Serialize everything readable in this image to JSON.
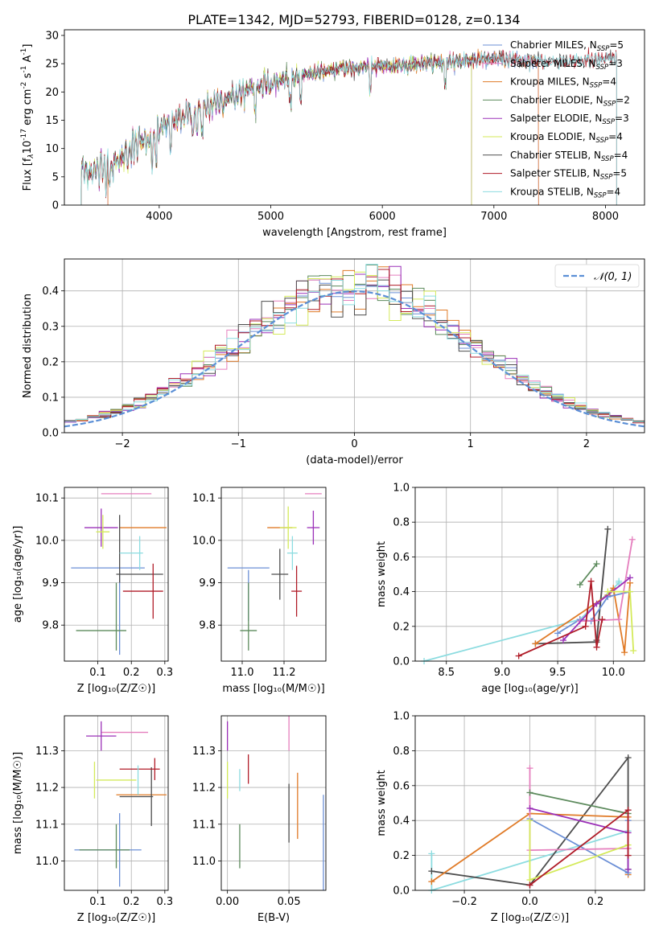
{
  "title": "PLATE=1342, MJD=52793, FIBERID=0128, z=0.134",
  "colors": {
    "Chabrier MILES": "#6b8fd6",
    "Salpeter MILES": "#e57fbe",
    "Kroupa MILES": "#e07b28",
    "Chabrier ELODIE": "#5c8a5c",
    "Salpeter ELODIE": "#9b30b8",
    "Kroupa ELODIE": "#d4ea5a",
    "Chabrier STELIB": "#4d4d4d",
    "Salpeter STELIB": "#b01c28",
    "Kroupa STELIB": "#8cdce0",
    "normal": "#5b8fd6"
  },
  "chart_data": [
    {
      "type": "line",
      "xlabel": "wavelength [Angstrom, rest frame]",
      "ylabel_main": "Flux [f",
      "ylabel_sub": "λ",
      "ylabel_mid": "10",
      "ylabel_sup": "-17",
      "ylabel_end": " erg cm",
      "ylabel_sup2": "-2",
      "ylabel_s": " s",
      "ylabel_sup3": "-1",
      "ylabel_A": " A",
      "ylabel_sup4": "-1",
      "ylabel_close": "]",
      "xlim": [
        3150,
        8350
      ],
      "ylim": [
        0,
        31
      ],
      "xticks": [
        "4000",
        "5000",
        "6000",
        "7000",
        "8000"
      ],
      "xtick_values": [
        4000,
        5000,
        6000,
        7000,
        8000
      ],
      "yticks": [
        "0",
        "5",
        "10",
        "15",
        "20",
        "25",
        "30"
      ],
      "ytick_values": [
        0,
        5,
        10,
        15,
        20,
        25,
        30
      ],
      "continuum": [
        [
          3300,
          6.0
        ],
        [
          3550,
          6.2
        ],
        [
          3700,
          9.0
        ],
        [
          3850,
          11.5
        ],
        [
          3950,
          12.5
        ],
        [
          4100,
          14.5
        ],
        [
          4300,
          16.5
        ],
        [
          4500,
          18.0
        ],
        [
          4700,
          19.5
        ],
        [
          4900,
          21.0
        ],
        [
          5100,
          22.2
        ],
        [
          5300,
          23.0
        ],
        [
          5500,
          23.8
        ],
        [
          5700,
          24.2
        ],
        [
          5900,
          24.5
        ],
        [
          6100,
          24.6
        ],
        [
          6300,
          25.0
        ],
        [
          6500,
          25.2
        ],
        [
          6700,
          25.5
        ],
        [
          6900,
          25.8
        ],
        [
          7100,
          25.8
        ],
        [
          7300,
          25.5
        ],
        [
          7500,
          25.5
        ],
        [
          7700,
          25.5
        ],
        [
          7900,
          25.6
        ],
        [
          8100,
          25.8
        ]
      ],
      "legend": [
        {
          "label": "Chabrier MILES, N",
          "sub": "SSP",
          "val": "=5",
          "color": "#6b8fd6"
        },
        {
          "label": "Salpeter MILES, N",
          "sub": "SSP",
          "val": "=3",
          "color": "#e57fbe"
        },
        {
          "label": "Kroupa MILES, N",
          "sub": "SSP",
          "val": "=4",
          "color": "#e07b28"
        },
        {
          "label": "Chabrier ELODIE, N",
          "sub": "SSP",
          "val": "=2",
          "color": "#5c8a5c"
        },
        {
          "label": "Salpeter ELODIE, N",
          "sub": "SSP",
          "val": "=3",
          "color": "#9b30b8"
        },
        {
          "label": "Kroupa ELODIE, N",
          "sub": "SSP",
          "val": "=4",
          "color": "#d4ea5a"
        },
        {
          "label": "Chabrier STELIB, N",
          "sub": "SSP",
          "val": "=4",
          "color": "#4d4d4d"
        },
        {
          "label": "Salpeter STELIB, N",
          "sub": "SSP",
          "val": "=5",
          "color": "#b01c28"
        },
        {
          "label": "Kroupa STELIB, N",
          "sub": "SSP",
          "val": "=4",
          "color": "#8cdce0"
        }
      ]
    },
    {
      "type": "area",
      "xlabel": "(data-model)/error",
      "ylabel": "Normed distribution",
      "xlim": [
        -2.5,
        2.5
      ],
      "ylim": [
        0,
        0.49
      ],
      "xticks": [
        "−2",
        "−1",
        "0",
        "1",
        "2"
      ],
      "xtick_values": [
        -2,
        -1,
        0,
        1,
        2
      ],
      "yticks": [
        "0.0",
        "0.1",
        "0.2",
        "0.3",
        "0.4"
      ],
      "ytick_values": [
        0,
        0.1,
        0.2,
        0.3,
        0.4
      ],
      "legend": "𝒩(0, 1)",
      "bin_width": 0.1
    },
    {
      "type": "scatter",
      "xlabel": "Z [log₁₀(Z/Z☉)]",
      "ylabel": "age  [log₁₀(age/yr)]",
      "xlim": [
        0.0,
        0.31
      ],
      "ylim": [
        9.715,
        10.125
      ],
      "xticks": [
        "0.1",
        "0.2",
        "0.3"
      ],
      "xtick_values": [
        0.1,
        0.2,
        0.3
      ],
      "yticks": [
        "9.8",
        "9.9",
        "10.0",
        "10.1"
      ],
      "ytick_values": [
        9.8,
        9.9,
        10.0,
        10.1
      ],
      "points": [
        {
          "s": "Chabrier MILES",
          "x": 0.13,
          "xe": 0.11,
          "y": 9.935,
          "ye": 0.0
        },
        {
          "s": "Chabrier MILES",
          "x": 0.165,
          "xe": 0.0,
          "y": 9.83,
          "ye": 0.1
        },
        {
          "s": "Salpeter MILES",
          "x": 0.185,
          "xe": 0.075,
          "y": 10.11,
          "ye": 0.0
        },
        {
          "s": "Kroupa MILES",
          "x": 0.235,
          "xe": 0.07,
          "y": 10.03,
          "ye": 0.0
        },
        {
          "s": "Chabrier ELODIE",
          "x": 0.11,
          "xe": 0.075,
          "y": 9.787,
          "ye": 0.0
        },
        {
          "s": "Chabrier ELODIE",
          "x": 0.155,
          "xe": 0.0,
          "y": 9.82,
          "ye": 0.08
        },
        {
          "s": "Salpeter ELODIE",
          "x": 0.11,
          "xe": 0.05,
          "y": 10.03,
          "ye": 0.045
        },
        {
          "s": "Kroupa ELODIE",
          "x": 0.115,
          "xe": 0.02,
          "y": 10.02,
          "ye": 0.04
        },
        {
          "s": "Chabrier STELIB",
          "x": 0.165,
          "xe": 0.0,
          "y": 9.98,
          "ye": 0.08
        },
        {
          "s": "Chabrier STELIB",
          "x": 0.225,
          "xe": 0.07,
          "y": 9.92,
          "ye": 0.0
        },
        {
          "s": "Salpeter STELIB",
          "x": 0.235,
          "xe": 0.06,
          "y": 9.88,
          "ye": 0.0
        },
        {
          "s": "Salpeter STELIB",
          "x": 0.265,
          "xe": 0.0,
          "y": 9.88,
          "ye": 0.065
        },
        {
          "s": "Kroupa STELIB",
          "x": 0.2,
          "xe": 0.035,
          "y": 9.97,
          "ye": 0.0
        },
        {
          "s": "Kroupa STELIB",
          "x": 0.225,
          "xe": 0.0,
          "y": 9.97,
          "ye": 0.04
        }
      ]
    },
    {
      "type": "scatter",
      "xlabel": "mass [log₁₀(M/M☉)]",
      "ylabel": "",
      "xlim": [
        10.9,
        11.4
      ],
      "ylim": [
        9.715,
        10.125
      ],
      "xticks": [
        "11.0",
        "11.2"
      ],
      "xtick_values": [
        11.0,
        11.2
      ],
      "yticks": [
        "9.8",
        "9.9",
        "10.0",
        "10.1"
      ],
      "ytick_values": [
        9.8,
        9.9,
        10.0,
        10.1
      ],
      "points": [
        {
          "s": "Chabrier MILES",
          "x": 11.03,
          "xe": 0.1,
          "y": 9.935,
          "ye": 0.0
        },
        {
          "s": "Chabrier MILES",
          "x": 11.03,
          "xe": 0.0,
          "y": 9.87,
          "ye": 0.06
        },
        {
          "s": "Salpeter MILES",
          "x": 11.34,
          "xe": 0.04,
          "y": 10.11,
          "ye": 0.0
        },
        {
          "s": "Kroupa MILES",
          "x": 11.18,
          "xe": 0.06,
          "y": 10.03,
          "ye": 0.0
        },
        {
          "s": "Chabrier ELODIE",
          "x": 11.03,
          "xe": 0.04,
          "y": 9.787,
          "ye": 0.0
        },
        {
          "s": "Chabrier ELODIE",
          "x": 11.03,
          "xe": 0.0,
          "y": 9.82,
          "ye": 0.08
        },
        {
          "s": "Salpeter ELODIE",
          "x": 11.34,
          "xe": 0.03,
          "y": 10.03,
          "ye": 0.04
        },
        {
          "s": "Kroupa ELODIE",
          "x": 11.22,
          "xe": 0.04,
          "y": 10.03,
          "ye": 0.05
        },
        {
          "s": "Chabrier STELIB",
          "x": 11.18,
          "xe": 0.04,
          "y": 9.92,
          "ye": 0.06
        },
        {
          "s": "Salpeter STELIB",
          "x": 11.26,
          "xe": 0.025,
          "y": 9.88,
          "ye": 0.06
        },
        {
          "s": "Kroupa STELIB",
          "x": 11.24,
          "xe": 0.025,
          "y": 9.97,
          "ye": 0.04
        }
      ]
    },
    {
      "type": "line",
      "xlabel": "age  [log₁₀(age/yr)]",
      "ylabel": "mass weight",
      "xlim": [
        8.22,
        10.28
      ],
      "ylim": [
        0.0,
        1.0
      ],
      "xticks": [
        "8.5",
        "9.0",
        "9.5",
        "10.0"
      ],
      "xtick_values": [
        8.5,
        9.0,
        9.5,
        10.0
      ],
      "yticks": [
        "0.0",
        "0.2",
        "0.4",
        "0.6",
        "0.8",
        "1.0"
      ],
      "ytick_values": [
        0,
        0.2,
        0.4,
        0.6,
        0.8,
        1.0
      ],
      "series": [
        {
          "s": "Kroupa STELIB",
          "x": [
            8.3,
            9.7,
            10.05,
            10.05
          ],
          "y": [
            0.0,
            0.24,
            0.45,
            0.46
          ]
        },
        {
          "s": "Chabrier STELIB",
          "x": [
            9.3,
            9.85,
            9.95,
            9.85
          ],
          "y": [
            0.1,
            0.11,
            0.76,
            0.12
          ]
        },
        {
          "s": "Kroupa MILES",
          "x": [
            9.3,
            9.95,
            10.0,
            10.1,
            10.15
          ],
          "y": [
            0.1,
            0.38,
            0.42,
            0.05,
            0.45
          ]
        },
        {
          "s": "Chabrier MILES",
          "x": [
            9.5,
            9.7,
            9.8,
            9.95,
            10.15
          ],
          "y": [
            0.16,
            0.24,
            0.23,
            0.37,
            0.4
          ]
        },
        {
          "s": "Salpeter MILES",
          "x": [
            9.7,
            10.05,
            10.17
          ],
          "y": [
            0.23,
            0.24,
            0.7
          ]
        },
        {
          "s": "Chabrier ELODIE",
          "x": [
            9.7,
            9.85
          ],
          "y": [
            0.44,
            0.56
          ]
        },
        {
          "s": "Salpeter ELODIE",
          "x": [
            9.55,
            9.85,
            10.15
          ],
          "y": [
            0.12,
            0.33,
            0.48
          ]
        },
        {
          "s": "Kroupa ELODIE",
          "x": [
            9.95,
            10.15,
            10.18
          ],
          "y": [
            0.4,
            0.4,
            0.06
          ]
        },
        {
          "s": "Salpeter STELIB",
          "x": [
            9.15,
            9.75,
            9.8,
            9.85,
            9.9
          ],
          "y": [
            0.03,
            0.2,
            0.46,
            0.08,
            0.24
          ]
        }
      ]
    },
    {
      "type": "scatter",
      "xlabel": "Z [log₁₀(Z/Z☉)]",
      "ylabel": "mass [log₁₀(M/M☉)]",
      "xlim": [
        0.0,
        0.31
      ],
      "ylim": [
        10.92,
        11.395
      ],
      "xticks": [
        "0.1",
        "0.2",
        "0.3"
      ],
      "xtick_values": [
        0.1,
        0.2,
        0.3
      ],
      "yticks": [
        "11.0",
        "11.1",
        "11.2",
        "11.3"
      ],
      "ytick_values": [
        11.0,
        11.1,
        11.2,
        11.3
      ],
      "points": [
        {
          "s": "Chabrier MILES",
          "x": 0.13,
          "xe": 0.1,
          "y": 11.03,
          "ye": 0.0
        },
        {
          "s": "Chabrier MILES",
          "x": 0.165,
          "xe": 0.0,
          "y": 11.03,
          "ye": 0.1
        },
        {
          "s": "Salpeter MILES",
          "x": 0.18,
          "xe": 0.07,
          "y": 11.35,
          "ye": 0.0
        },
        {
          "s": "Salpeter ELODIE",
          "x": 0.11,
          "xe": 0.045,
          "y": 11.34,
          "ye": 0.04
        },
        {
          "s": "Kroupa MILES",
          "x": 0.23,
          "xe": 0.075,
          "y": 11.18,
          "ye": 0.0
        },
        {
          "s": "Chabrier ELODIE",
          "x": 0.12,
          "xe": 0.075,
          "y": 11.03,
          "ye": 0.0
        },
        {
          "s": "Chabrier ELODIE",
          "x": 0.155,
          "xe": 0.0,
          "y": 11.04,
          "ye": 0.06
        },
        {
          "s": "Kroupa ELODIE",
          "x": 0.155,
          "xe": 0.06,
          "y": 11.22,
          "ye": 0.0
        },
        {
          "s": "Kroupa ELODIE",
          "x": 0.09,
          "xe": 0.0,
          "y": 11.22,
          "ye": 0.05
        },
        {
          "s": "Chabrier STELIB",
          "x": 0.215,
          "xe": 0.05,
          "y": 11.175,
          "ye": 0.0
        },
        {
          "s": "Chabrier STELIB",
          "x": 0.26,
          "xe": 0.0,
          "y": 11.175,
          "ye": 0.08
        },
        {
          "s": "Salpeter STELIB",
          "x": 0.225,
          "xe": 0.06,
          "y": 11.25,
          "ye": 0.0
        },
        {
          "s": "Salpeter STELIB",
          "x": 0.27,
          "xe": 0.0,
          "y": 11.25,
          "ye": 0.03
        },
        {
          "s": "Kroupa STELIB",
          "x": 0.22,
          "xe": 0.0,
          "y": 11.22,
          "ye": 0.04
        }
      ]
    },
    {
      "type": "scatter",
      "xlabel": "E(B-V)",
      "ylabel": "",
      "xlim": [
        -0.005,
        0.08
      ],
      "ylim": [
        10.92,
        11.395
      ],
      "xticks": [
        "0.00",
        "0.05"
      ],
      "xtick_values": [
        0.0,
        0.05
      ],
      "yticks": [
        "11.0",
        "11.1",
        "11.2",
        "11.3"
      ],
      "ytick_values": [
        11.0,
        11.1,
        11.2,
        11.3
      ],
      "points": [
        {
          "s": "Salpeter ELODIE",
          "x": 0.0,
          "xe": 0.0,
          "y": 11.34,
          "ye": 0.04
        },
        {
          "s": "Kroupa ELODIE",
          "x": 0.0,
          "xe": 0.0,
          "y": 11.22,
          "ye": 0.05
        },
        {
          "s": "Chabrier ELODIE",
          "x": 0.01,
          "xe": 0.0,
          "y": 11.04,
          "ye": 0.06
        },
        {
          "s": "Kroupa STELIB",
          "x": 0.01,
          "xe": 0.0,
          "y": 11.22,
          "ye": 0.03
        },
        {
          "s": "Salpeter STELIB",
          "x": 0.017,
          "xe": 0.0,
          "y": 11.25,
          "ye": 0.04
        },
        {
          "s": "Salpeter MILES",
          "x": 0.05,
          "xe": 0.0,
          "y": 11.35,
          "ye": 0.05
        },
        {
          "s": "Chabrier STELIB",
          "x": 0.05,
          "xe": 0.0,
          "y": 11.13,
          "ye": 0.08
        },
        {
          "s": "Kroupa MILES",
          "x": 0.057,
          "xe": 0.0,
          "y": 11.15,
          "ye": 0.09
        },
        {
          "s": "Chabrier MILES",
          "x": 0.078,
          "xe": 0.0,
          "y": 11.05,
          "ye": 0.13
        }
      ]
    },
    {
      "type": "line",
      "xlabel": "Z [log₁₀(Z/Z☉)]",
      "ylabel": "mass weight",
      "xlim": [
        -0.35,
        0.35
      ],
      "ylim": [
        0.0,
        1.0
      ],
      "xticks": [
        "−0.2",
        "0.0",
        "0.2"
      ],
      "xtick_values": [
        -0.2,
        0.0,
        0.2
      ],
      "yticks": [
        "0.0",
        "0.2",
        "0.4",
        "0.6",
        "0.8",
        "1.0"
      ],
      "ytick_values": [
        0,
        0.2,
        0.4,
        0.6,
        0.8,
        1.0
      ],
      "series": [
        {
          "s": "Kroupa STELIB",
          "x": [
            -0.3,
            -0.3,
            0.3,
            0.3
          ],
          "y": [
            0.21,
            0.0,
            0.34,
            0.46
          ]
        },
        {
          "s": "Chabrier STELIB",
          "x": [
            -0.3,
            0.0,
            0.3,
            0.3
          ],
          "y": [
            0.11,
            0.03,
            0.76,
            0.12
          ]
        },
        {
          "s": "Kroupa MILES",
          "x": [
            -0.3,
            0.0,
            0.3,
            0.3
          ],
          "y": [
            0.05,
            0.44,
            0.42,
            0.09
          ]
        },
        {
          "s": "Chabrier MILES",
          "x": [
            0.0,
            0.3,
            0.3
          ],
          "y": [
            0.41,
            0.1,
            0.4
          ]
        },
        {
          "s": "Salpeter MILES",
          "x": [
            0.0,
            0.0,
            0.3
          ],
          "y": [
            0.7,
            0.23,
            0.24
          ]
        },
        {
          "s": "Chabrier ELODIE",
          "x": [
            0.0,
            0.3
          ],
          "y": [
            0.56,
            0.44
          ]
        },
        {
          "s": "Salpeter ELODIE",
          "x": [
            0.0,
            0.3,
            0.3
          ],
          "y": [
            0.47,
            0.33,
            0.12
          ]
        },
        {
          "s": "Kroupa ELODIE",
          "x": [
            0.0,
            0.0,
            0.3
          ],
          "y": [
            0.4,
            0.06,
            0.26
          ]
        },
        {
          "s": "Salpeter STELIB",
          "x": [
            0.0,
            0.3,
            0.3
          ],
          "y": [
            0.03,
            0.46,
            0.2
          ]
        }
      ]
    }
  ]
}
